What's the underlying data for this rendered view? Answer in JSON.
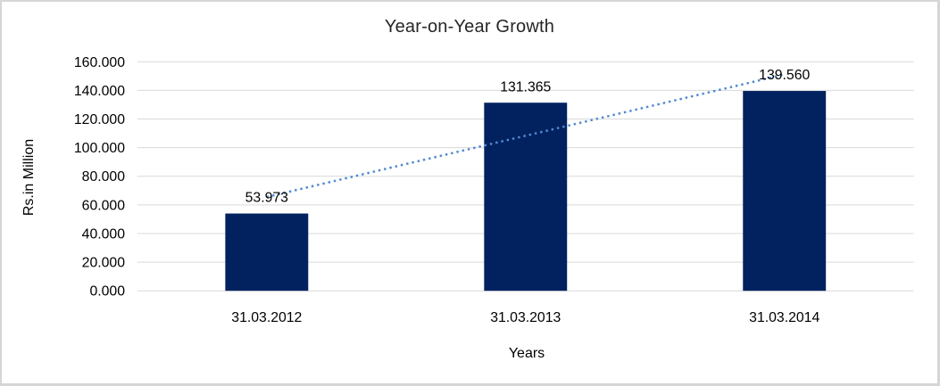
{
  "chart_data": {
    "type": "bar",
    "title": "Year-on-Year Growth",
    "xlabel": "Years",
    "ylabel": "Rs.in Million",
    "categories": [
      "31.03.2012",
      "31.03.2013",
      "31.03.2014"
    ],
    "values": [
      53.973,
      131.365,
      139.56
    ],
    "value_labels": [
      "53.973",
      "131.365",
      "139.560"
    ],
    "y_ticks": [
      "0.000",
      "20.000",
      "40.000",
      "60.000",
      "80.000",
      "100.000",
      "120.000",
      "140.000",
      "160.000"
    ],
    "ylim": [
      0,
      160
    ],
    "y_tick_step": 20,
    "grid": true,
    "legend": "none",
    "trendline": {
      "type": "linear",
      "style": "dotted"
    },
    "colors": {
      "bar": "#02225f",
      "trendline": "#5189d3",
      "gridline": "#d9d9d9",
      "axis_text": "#000000",
      "title_text": "#262626",
      "frame_border": "#d6d6d6",
      "background": "#ffffff"
    }
  }
}
